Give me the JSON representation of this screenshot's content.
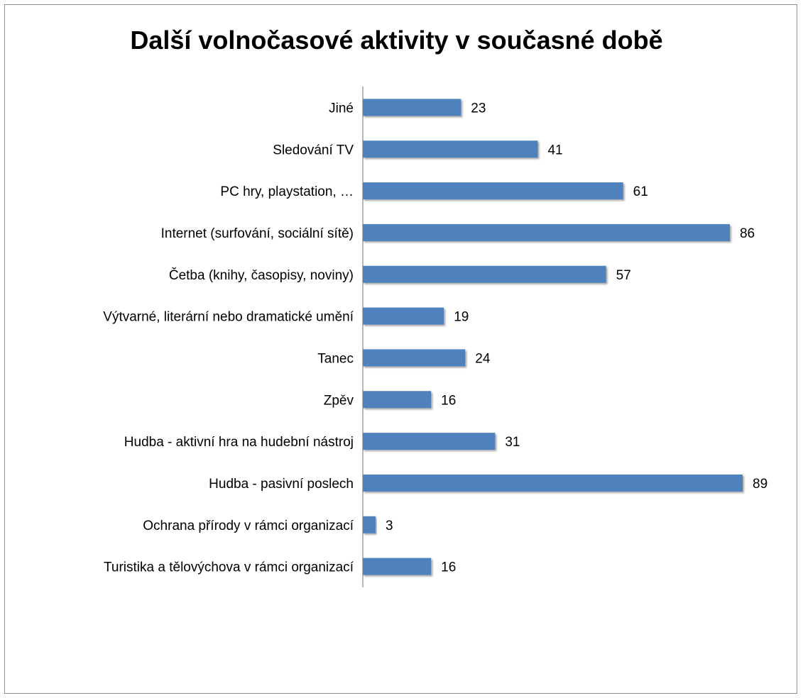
{
  "chart_data": {
    "type": "bar",
    "orientation": "horizontal",
    "title": "Další volnočasové aktivity v současné době",
    "categories": [
      "Jiné",
      "Sledování TV",
      "PC hry, playstation, …",
      "Internet (surfování, sociální sítě)",
      "Četba (knihy, časopisy, noviny)",
      "Výtvarné, literární nebo dramatické umění",
      "Tanec",
      "Zpěv",
      "Hudba - aktivní hra na hudební nástroj",
      "Hudba - pasivní poslech",
      "Ochrana přírody v rámci organizací",
      "Turistika a tělovýchova v rámci organizací"
    ],
    "values": [
      23,
      41,
      61,
      86,
      57,
      19,
      24,
      16,
      31,
      89,
      3,
      16
    ],
    "xlim": [
      0,
      89
    ],
    "grid": false,
    "legend": "none",
    "bar_color": "#4f81bd"
  }
}
